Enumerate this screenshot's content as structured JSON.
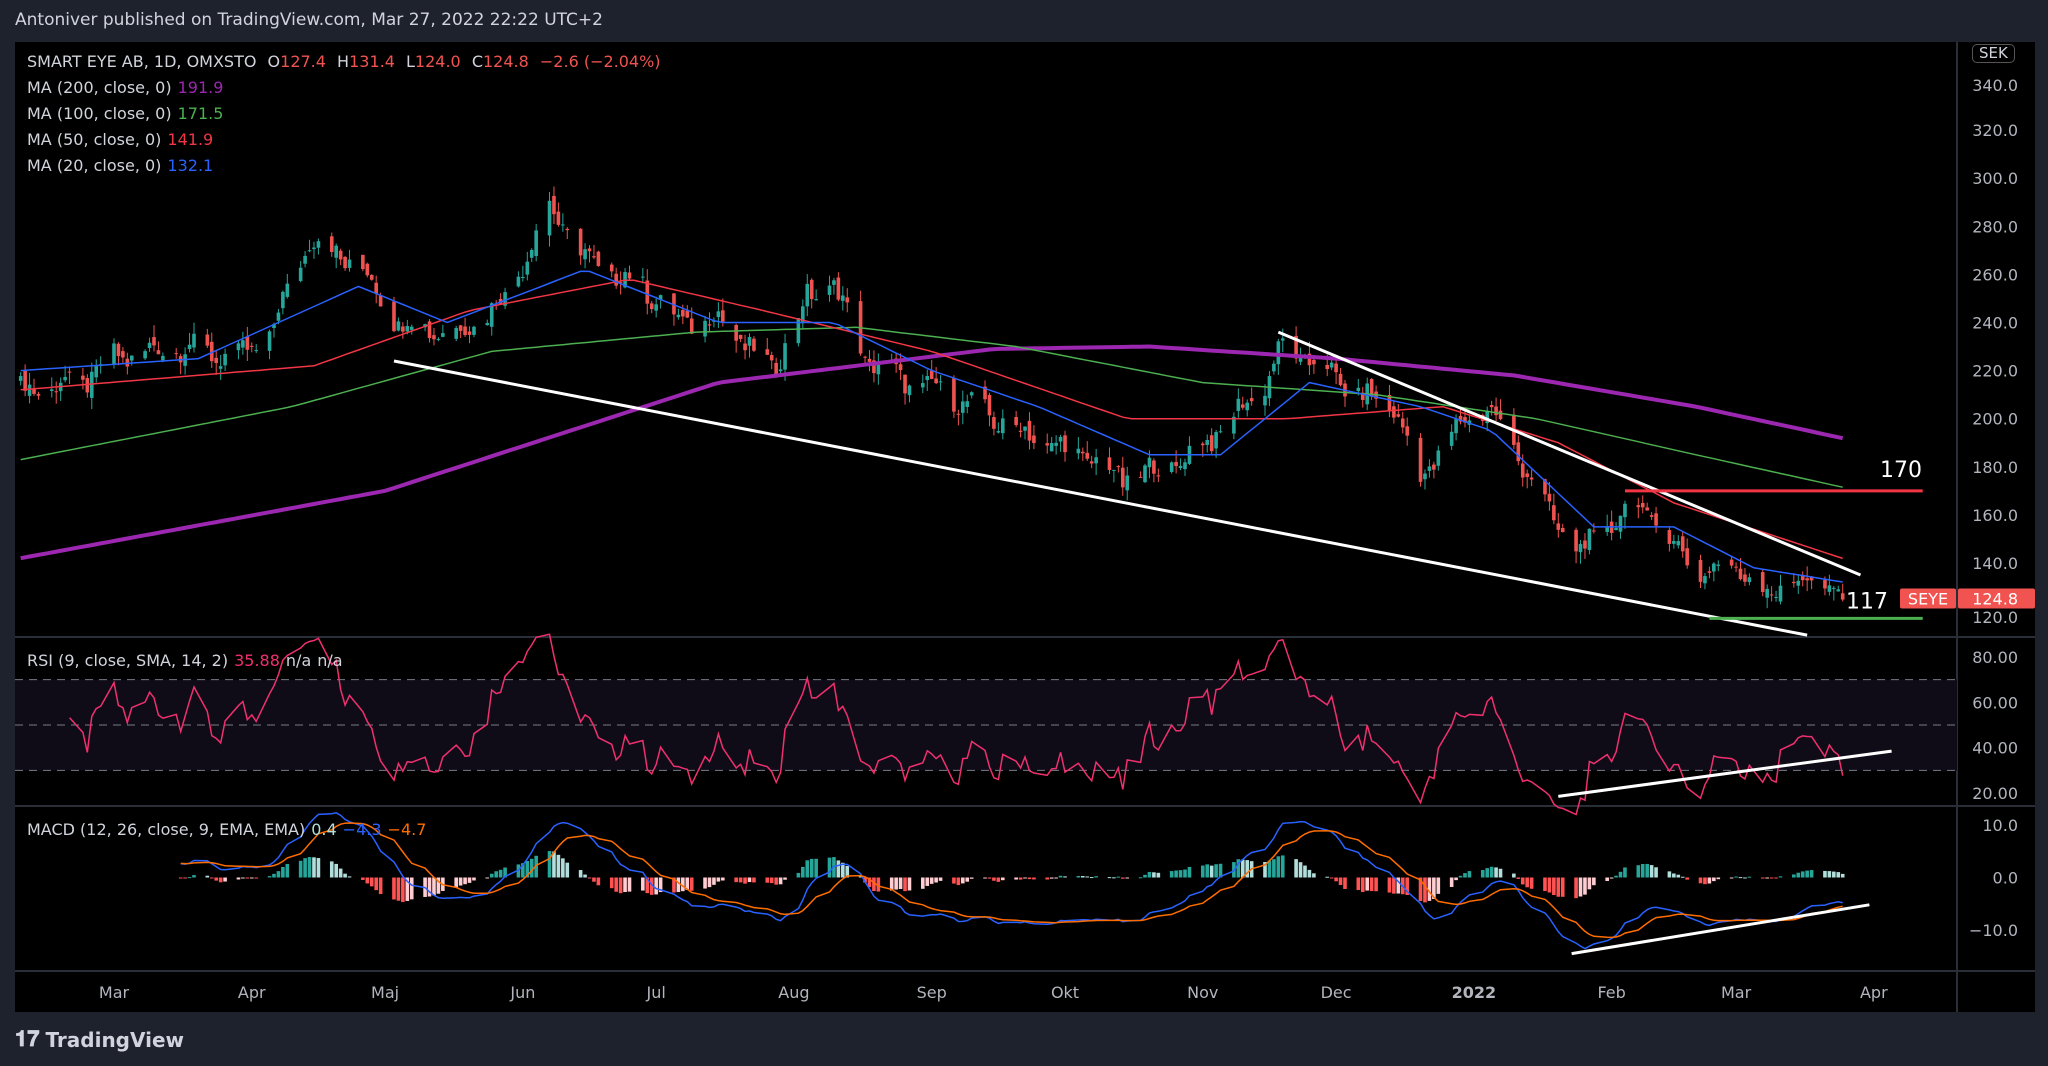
{
  "header": {
    "published": "Antoniver published on TradingView.com, Mar 27, 2022 22:22 UTC+2"
  },
  "legend": {
    "symbol": "SMART EYE AB, 1D, OMXSTO",
    "o_label": "O",
    "o": "127.4",
    "h_label": "H",
    "h": "131.4",
    "l_label": "L",
    "l": "124.0",
    "c_label": "C",
    "c": "124.8",
    "change": "−2.6 (−2.04%)",
    "ma": [
      {
        "label": "MA (200, close, 0)",
        "value": "191.9",
        "color": "#9c27b0"
      },
      {
        "label": "MA (100, close, 0)",
        "value": "171.5",
        "color": "#4caf50"
      },
      {
        "label": "MA (50, close, 0)",
        "value": "141.9",
        "color": "#f23645"
      },
      {
        "label": "MA (20, close, 0)",
        "value": "132.1",
        "color": "#2962ff"
      }
    ],
    "rsi": {
      "label": "RSI (9, close, SMA, 14, 2)",
      "value": "35.88",
      "extra1": "n/a",
      "extra2": "n/a"
    },
    "macd": {
      "label": "MACD (12, 26, close, 9, EMA, EMA)",
      "hist": "0.4",
      "macd": "−4.3",
      "signal": "−4.7"
    }
  },
  "currency": "SEK",
  "price_tag": {
    "symbol": "SEYE",
    "value": "124.8",
    "color": "#f05350"
  },
  "footer": {
    "brand": "TradingView"
  },
  "chart_data": {
    "type": "candlestick",
    "price_axis": {
      "ticks": [
        "340.0",
        "320.0",
        "300.0",
        "280.0",
        "260.0",
        "240.0",
        "220.0",
        "200.0",
        "180.0",
        "160.0",
        "140.0",
        "120.0"
      ],
      "range": [
        113,
        349
      ]
    },
    "rsi_axis": {
      "ticks": [
        "80.00",
        "60.00",
        "40.00",
        "20.00"
      ],
      "band": [
        30,
        70
      ],
      "mid": 50
    },
    "macd_axis": {
      "ticks": [
        "10.0",
        "0.0",
        "−10.0"
      ]
    },
    "time_axis": [
      {
        "label": "Mar",
        "date": "2021-03-01"
      },
      {
        "label": "Apr",
        "date": "2021-04-01"
      },
      {
        "label": "Maj",
        "date": "2021-05-01"
      },
      {
        "label": "Jun",
        "date": "2021-06-01"
      },
      {
        "label": "Jul",
        "date": "2021-07-01"
      },
      {
        "label": "Aug",
        "date": "2021-08-01"
      },
      {
        "label": "Sep",
        "date": "2021-09-01"
      },
      {
        "label": "Okt",
        "date": "2021-10-01"
      },
      {
        "label": "Nov",
        "date": "2021-11-01"
      },
      {
        "label": "Dec",
        "date": "2021-12-01"
      },
      {
        "label": "2022",
        "date": "2022-01-01",
        "bold": true
      },
      {
        "label": "Feb",
        "date": "2022-02-01"
      },
      {
        "label": "Mar",
        "date": "2022-03-01"
      },
      {
        "label": "Apr",
        "date": "2022-04-01"
      }
    ],
    "close_path": [
      [
        "2021-02-08",
        212
      ],
      [
        "2021-02-22",
        215
      ],
      [
        "2021-03-01",
        225
      ],
      [
        "2021-03-15",
        230
      ],
      [
        "2021-03-29",
        225
      ],
      [
        "2021-04-05",
        235
      ],
      [
        "2021-04-14",
        275
      ],
      [
        "2021-04-26",
        262
      ],
      [
        "2021-05-04",
        240
      ],
      [
        "2021-05-17",
        235
      ],
      [
        "2021-05-28",
        250
      ],
      [
        "2021-06-07",
        288
      ],
      [
        "2021-06-16",
        265
      ],
      [
        "2021-06-28",
        255
      ],
      [
        "2021-07-06",
        240
      ],
      [
        "2021-07-15",
        242
      ],
      [
        "2021-07-27",
        220
      ],
      [
        "2021-08-04",
        250
      ],
      [
        "2021-08-10",
        257
      ],
      [
        "2021-08-17",
        225
      ],
      [
        "2021-08-27",
        215
      ],
      [
        "2021-09-03",
        212
      ],
      [
        "2021-09-15",
        200
      ],
      [
        "2021-09-27",
        190
      ],
      [
        "2021-10-05",
        185
      ],
      [
        "2021-10-14",
        175
      ],
      [
        "2021-10-27",
        182
      ],
      [
        "2021-11-05",
        195
      ],
      [
        "2021-11-15",
        215
      ],
      [
        "2021-11-19",
        230
      ],
      [
        "2021-11-29",
        220
      ],
      [
        "2021-12-06",
        210
      ],
      [
        "2021-12-14",
        205
      ],
      [
        "2021-12-20",
        175
      ],
      [
        "2021-12-30",
        200
      ],
      [
        "2022-01-04",
        205
      ],
      [
        "2022-01-11",
        185
      ],
      [
        "2022-01-18",
        160
      ],
      [
        "2022-01-25",
        145
      ],
      [
        "2022-01-31",
        155
      ],
      [
        "2022-02-07",
        165
      ],
      [
        "2022-02-14",
        150
      ],
      [
        "2022-02-22",
        135
      ],
      [
        "2022-02-28",
        140
      ],
      [
        "2022-03-07",
        128
      ],
      [
        "2022-03-14",
        132
      ],
      [
        "2022-03-21",
        132
      ],
      [
        "2022-03-25",
        124.8
      ]
    ],
    "moving_averages": [
      {
        "name": "MA (200, close, 0)",
        "color": "#9c27b0",
        "width": 4,
        "points": [
          [
            "2021-02-08",
            142
          ],
          [
            "2021-05-01",
            170
          ],
          [
            "2021-07-15",
            215
          ],
          [
            "2021-09-15",
            229
          ],
          [
            "2021-10-20",
            230
          ],
          [
            "2021-12-01",
            225
          ],
          [
            "2022-01-10",
            218
          ],
          [
            "2022-02-20",
            205
          ],
          [
            "2022-03-25",
            191.9
          ]
        ]
      },
      {
        "name": "MA (100, close, 0)",
        "color": "#4caf50",
        "width": 1.5,
        "points": [
          [
            "2021-02-08",
            183
          ],
          [
            "2021-04-10",
            205
          ],
          [
            "2021-05-25",
            228
          ],
          [
            "2021-07-10",
            236
          ],
          [
            "2021-08-15",
            238
          ],
          [
            "2021-09-20",
            230
          ],
          [
            "2021-11-01",
            215
          ],
          [
            "2021-12-10",
            210
          ],
          [
            "2022-01-15",
            200
          ],
          [
            "2022-02-20",
            185
          ],
          [
            "2022-03-25",
            171.5
          ]
        ]
      },
      {
        "name": "MA (50, close, 0)",
        "color": "#f23645",
        "width": 1.5,
        "points": [
          [
            "2021-02-08",
            212
          ],
          [
            "2021-04-15",
            222
          ],
          [
            "2021-05-20",
            245
          ],
          [
            "2021-06-25",
            258
          ],
          [
            "2021-07-25",
            245
          ],
          [
            "2021-09-01",
            228
          ],
          [
            "2021-10-15",
            200
          ],
          [
            "2021-11-20",
            200
          ],
          [
            "2021-12-25",
            205
          ],
          [
            "2022-01-20",
            190
          ],
          [
            "2022-02-15",
            165
          ],
          [
            "2022-03-25",
            141.9
          ]
        ]
      },
      {
        "name": "MA (20, close, 0)",
        "color": "#2962ff",
        "width": 1.5,
        "points": [
          [
            "2021-02-08",
            220
          ],
          [
            "2021-03-20",
            225
          ],
          [
            "2021-04-25",
            255
          ],
          [
            "2021-05-15",
            240
          ],
          [
            "2021-06-15",
            262
          ],
          [
            "2021-07-15",
            240
          ],
          [
            "2021-08-10",
            240
          ],
          [
            "2021-09-01",
            220
          ],
          [
            "2021-09-25",
            205
          ],
          [
            "2021-10-20",
            185
          ],
          [
            "2021-11-05",
            185
          ],
          [
            "2021-11-25",
            215
          ],
          [
            "2021-12-20",
            205
          ],
          [
            "2022-01-05",
            195
          ],
          [
            "2022-01-28",
            155
          ],
          [
            "2022-02-15",
            155
          ],
          [
            "2022-03-05",
            138
          ],
          [
            "2022-03-25",
            132.1
          ]
        ]
      }
    ],
    "drawings": [
      {
        "pane": "price",
        "color": "#ffffff",
        "from": [
          "2021-05-03",
          224
        ],
        "to": [
          "2022-03-17",
          110
        ]
      },
      {
        "pane": "price",
        "color": "#ffffff",
        "from": [
          "2021-11-18",
          236
        ],
        "to": [
          "2022-03-29",
          135
        ]
      },
      {
        "pane": "price",
        "color": "#f23645",
        "from": [
          "2022-02-04",
          170
        ],
        "to": [
          "2022-04-12",
          170
        ],
        "label": "170"
      },
      {
        "pane": "price",
        "color": "#4caf50",
        "from": [
          "2022-02-23",
          117
        ],
        "to": [
          "2022-04-12",
          117
        ],
        "label": "117"
      },
      {
        "pane": "rsi",
        "color": "#ffffff",
        "from": [
          "2022-01-20",
          18.5
        ],
        "to": [
          "2022-04-05",
          38.5
        ]
      },
      {
        "pane": "macd",
        "color": "#ffffff",
        "from": [
          "2022-01-23",
          -14.5
        ],
        "to": [
          "2022-03-31",
          -5.2
        ]
      }
    ],
    "last_candle": {
      "open": 127.4,
      "high": 131.4,
      "low": 124.0,
      "close": 124.8
    }
  }
}
